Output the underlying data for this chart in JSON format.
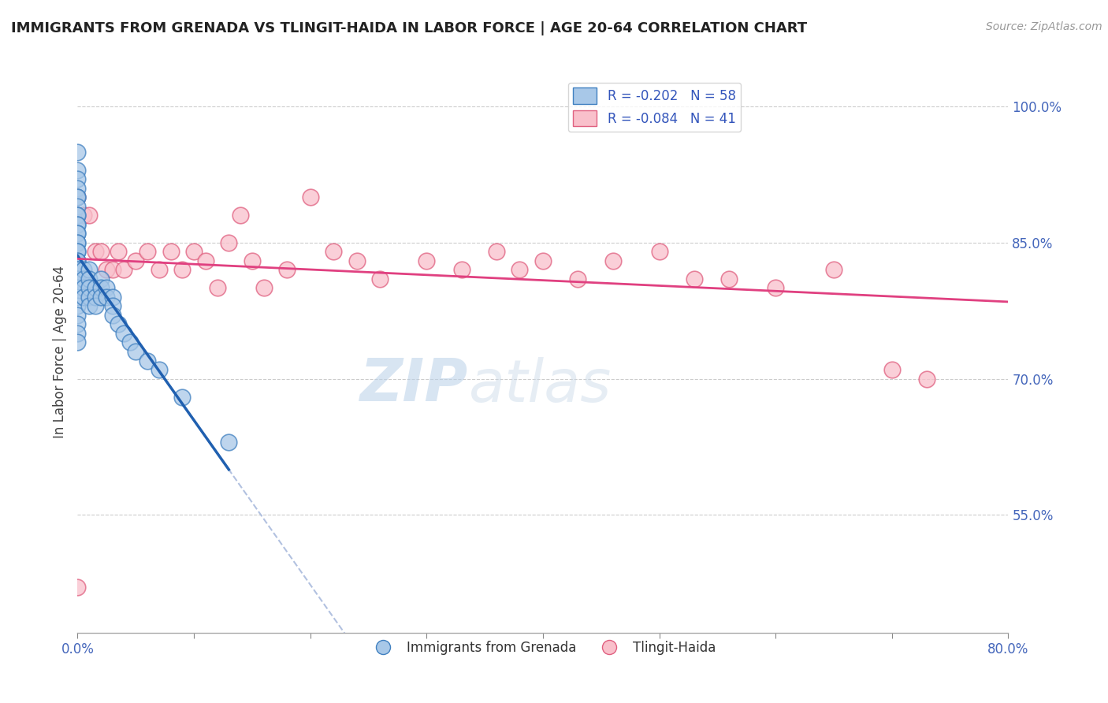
{
  "title": "IMMIGRANTS FROM GRENADA VS TLINGIT-HAIDA IN LABOR FORCE | AGE 20-64 CORRELATION CHART",
  "source": "Source: ZipAtlas.com",
  "ylabel": "In Labor Force | Age 20-64",
  "xlim": [
    0.0,
    0.8
  ],
  "ylim": [
    0.42,
    1.04
  ],
  "x_ticks": [
    0.0,
    0.1,
    0.2,
    0.3,
    0.4,
    0.5,
    0.6,
    0.7,
    0.8
  ],
  "y_ticks": [
    0.55,
    0.7,
    0.85,
    1.0
  ],
  "y_tick_labels": [
    "55.0%",
    "70.0%",
    "85.0%",
    "100.0%"
  ],
  "legend1_label": "R = -0.202   N = 58",
  "legend2_label": "R = -0.084   N = 41",
  "blue_color": "#a8c8e8",
  "pink_color": "#f9c0cb",
  "blue_edge_color": "#4080c0",
  "pink_edge_color": "#e06080",
  "blue_line_color": "#2060b0",
  "pink_line_color": "#e04080",
  "dashed_line_color": "#aabbdd",
  "watermark_zip": "ZIP",
  "watermark_atlas": "atlas",
  "blue_scatter_x": [
    0.0,
    0.0,
    0.0,
    0.0,
    0.0,
    0.0,
    0.0,
    0.0,
    0.0,
    0.0,
    0.0,
    0.0,
    0.0,
    0.0,
    0.0,
    0.0,
    0.0,
    0.0,
    0.0,
    0.0,
    0.0,
    0.0,
    0.0,
    0.0,
    0.0,
    0.0,
    0.0,
    0.0,
    0.0,
    0.0,
    0.005,
    0.005,
    0.005,
    0.005,
    0.01,
    0.01,
    0.01,
    0.01,
    0.01,
    0.015,
    0.015,
    0.015,
    0.02,
    0.02,
    0.02,
    0.025,
    0.025,
    0.03,
    0.03,
    0.03,
    0.035,
    0.04,
    0.045,
    0.05,
    0.06,
    0.07,
    0.09,
    0.13
  ],
  "blue_scatter_y": [
    0.95,
    0.93,
    0.92,
    0.91,
    0.9,
    0.9,
    0.89,
    0.88,
    0.88,
    0.87,
    0.87,
    0.86,
    0.86,
    0.85,
    0.85,
    0.84,
    0.84,
    0.83,
    0.83,
    0.82,
    0.82,
    0.81,
    0.81,
    0.8,
    0.79,
    0.78,
    0.77,
    0.76,
    0.75,
    0.74,
    0.82,
    0.81,
    0.8,
    0.79,
    0.82,
    0.81,
    0.8,
    0.79,
    0.78,
    0.8,
    0.79,
    0.78,
    0.81,
    0.8,
    0.79,
    0.8,
    0.79,
    0.79,
    0.78,
    0.77,
    0.76,
    0.75,
    0.74,
    0.73,
    0.72,
    0.71,
    0.68,
    0.63
  ],
  "pink_scatter_x": [
    0.0,
    0.0,
    0.005,
    0.01,
    0.015,
    0.02,
    0.025,
    0.03,
    0.035,
    0.04,
    0.05,
    0.06,
    0.07,
    0.08,
    0.09,
    0.1,
    0.11,
    0.12,
    0.13,
    0.14,
    0.15,
    0.16,
    0.18,
    0.2,
    0.22,
    0.24,
    0.26,
    0.3,
    0.33,
    0.36,
    0.38,
    0.4,
    0.43,
    0.46,
    0.5,
    0.53,
    0.56,
    0.6,
    0.65,
    0.7,
    0.73
  ],
  "pink_scatter_y": [
    0.47,
    0.9,
    0.88,
    0.88,
    0.84,
    0.84,
    0.82,
    0.82,
    0.84,
    0.82,
    0.83,
    0.84,
    0.82,
    0.84,
    0.82,
    0.84,
    0.83,
    0.8,
    0.85,
    0.88,
    0.83,
    0.8,
    0.82,
    0.9,
    0.84,
    0.83,
    0.81,
    0.83,
    0.82,
    0.84,
    0.82,
    0.83,
    0.81,
    0.83,
    0.84,
    0.81,
    0.81,
    0.8,
    0.82,
    0.71,
    0.7
  ]
}
